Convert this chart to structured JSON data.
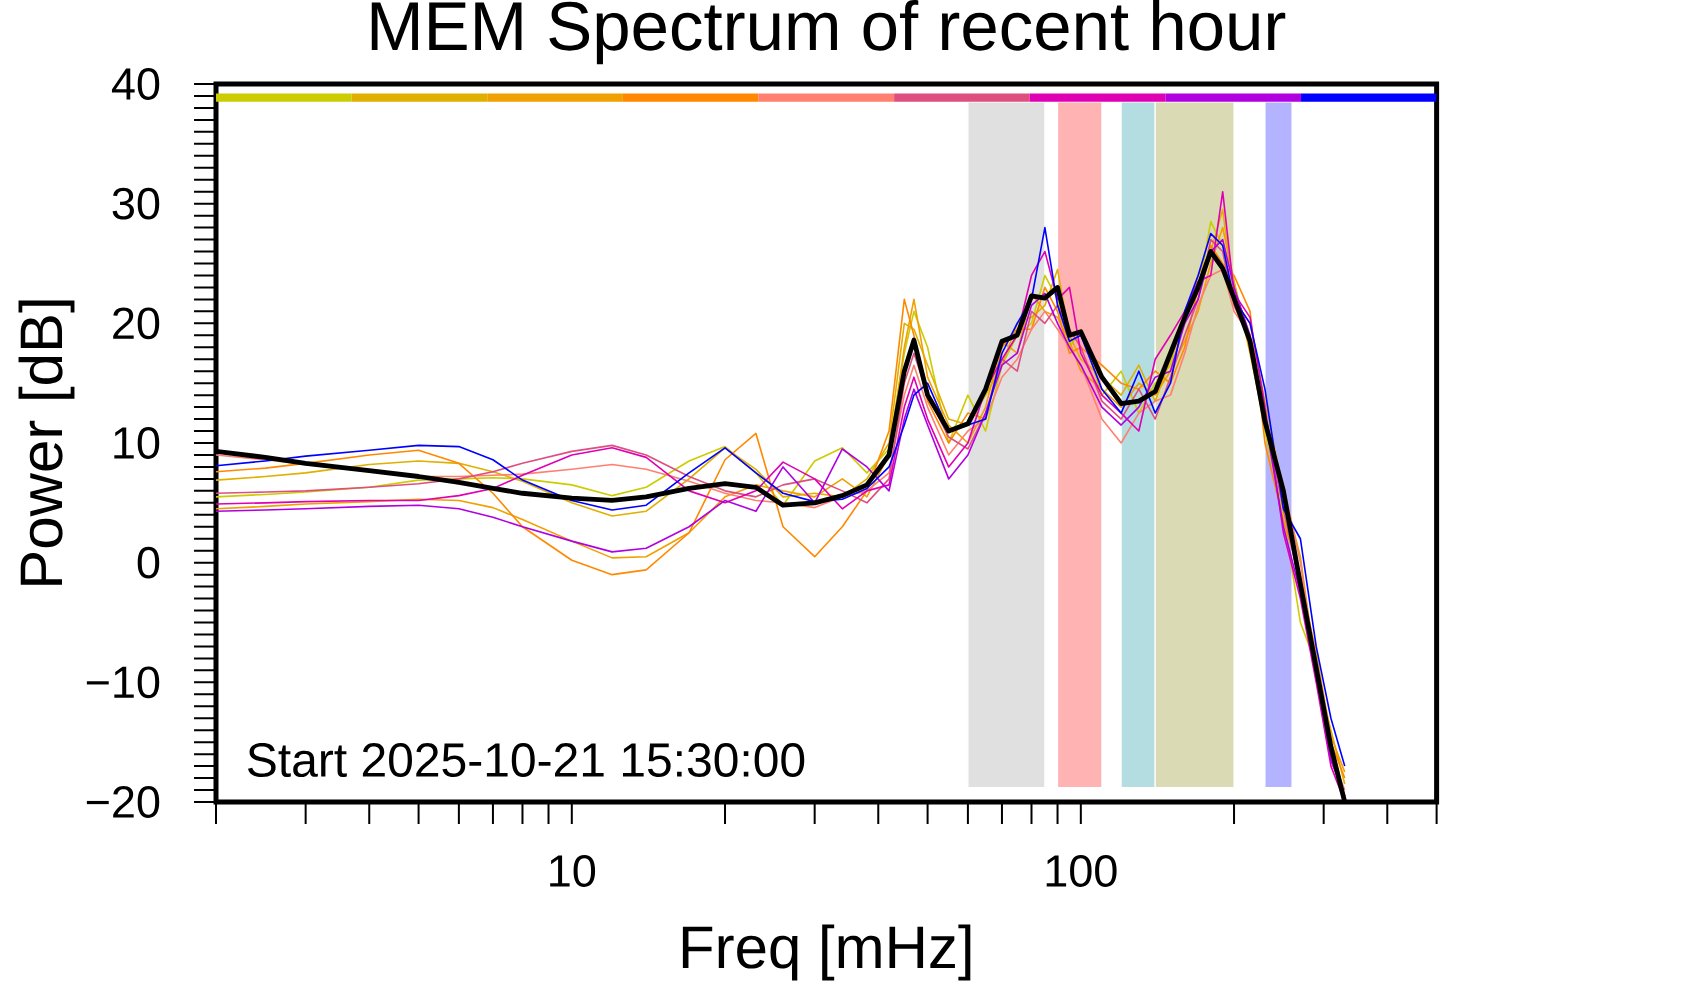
{
  "chart_data": {
    "type": "line",
    "title": "MEM Spectrum of recent hour",
    "xlabel": "Freq [mHz]",
    "ylabel": "Power [dB]",
    "log": "x",
    "xlim": [
      2,
      500
    ],
    "ylim": [
      -20,
      40
    ],
    "xticks": [
      {
        "value": 2,
        "label": null
      },
      {
        "value": 3,
        "label": null
      },
      {
        "value": 4,
        "label": null
      },
      {
        "value": 5,
        "label": null
      },
      {
        "value": 6,
        "label": null
      },
      {
        "value": 7,
        "label": null
      },
      {
        "value": 8,
        "label": null
      },
      {
        "value": 9,
        "label": null
      },
      10,
      {
        "value": 20,
        "label": null
      },
      {
        "value": 30,
        "label": null
      },
      {
        "value": 40,
        "label": null
      },
      {
        "value": 50,
        "label": null
      },
      {
        "value": 60,
        "label": null
      },
      {
        "value": 70,
        "label": null
      },
      {
        "value": 80,
        "label": null
      },
      {
        "value": 90,
        "label": null
      },
      100,
      {
        "value": 200,
        "label": null
      },
      {
        "value": 300,
        "label": null
      },
      {
        "value": 400,
        "label": null
      },
      {
        "value": 500,
        "label": null
      }
    ],
    "yticks": [
      {
        "value": -20,
        "label": "−20"
      },
      {
        "value": -19,
        "label": null
      },
      {
        "value": -18,
        "label": null
      },
      {
        "value": -17,
        "label": null
      },
      {
        "value": -16,
        "label": null
      },
      {
        "value": -15,
        "label": null
      },
      {
        "value": -14,
        "label": null
      },
      {
        "value": -13,
        "label": null
      },
      {
        "value": -12,
        "label": null
      },
      {
        "value": -11,
        "label": null
      },
      {
        "value": -10,
        "label": "−10"
      },
      {
        "value": -9,
        "label": null
      },
      {
        "value": -8,
        "label": null
      },
      {
        "value": -7,
        "label": null
      },
      {
        "value": -6,
        "label": null
      },
      {
        "value": -5,
        "label": null
      },
      {
        "value": -4,
        "label": null
      },
      {
        "value": -3,
        "label": null
      },
      {
        "value": -2,
        "label": null
      },
      {
        "value": -1,
        "label": null
      },
      0,
      {
        "value": 1,
        "label": null
      },
      {
        "value": 2,
        "label": null
      },
      {
        "value": 3,
        "label": null
      },
      {
        "value": 4,
        "label": null
      },
      {
        "value": 5,
        "label": null
      },
      {
        "value": 6,
        "label": null
      },
      {
        "value": 7,
        "label": null
      },
      {
        "value": 8,
        "label": null
      },
      {
        "value": 9,
        "label": null
      },
      10,
      {
        "value": 11,
        "label": null
      },
      {
        "value": 12,
        "label": null
      },
      {
        "value": 13,
        "label": null
      },
      {
        "value": 14,
        "label": null
      },
      {
        "value": 15,
        "label": null
      },
      {
        "value": 16,
        "label": null
      },
      {
        "value": 17,
        "label": null
      },
      {
        "value": 18,
        "label": null
      },
      {
        "value": 19,
        "label": null
      },
      20,
      {
        "value": 21,
        "label": null
      },
      {
        "value": 22,
        "label": null
      },
      {
        "value": 23,
        "label": null
      },
      {
        "value": 24,
        "label": null
      },
      {
        "value": 25,
        "label": null
      },
      {
        "value": 26,
        "label": null
      },
      {
        "value": 27,
        "label": null
      },
      {
        "value": 28,
        "label": null
      },
      {
        "value": 29,
        "label": null
      },
      30,
      {
        "value": 31,
        "label": null
      },
      {
        "value": 32,
        "label": null
      },
      {
        "value": 33,
        "label": null
      },
      {
        "value": 34,
        "label": null
      },
      {
        "value": 35,
        "label": null
      },
      {
        "value": 36,
        "label": null
      },
      {
        "value": 37,
        "label": null
      },
      {
        "value": 38,
        "label": null
      },
      {
        "value": 39,
        "label": null
      },
      40
    ],
    "x": [
      2,
      2.5,
      3,
      4,
      5,
      6,
      7,
      8,
      10,
      12,
      14,
      17,
      20,
      23,
      26,
      30,
      34,
      38,
      42,
      45,
      47,
      50,
      55,
      60,
      65,
      70,
      75,
      80,
      85,
      90,
      95,
      100,
      110,
      120,
      130,
      140,
      150,
      160,
      170,
      180,
      190,
      200,
      215,
      230,
      250,
      270,
      290,
      310,
      330
    ],
    "series": [
      {
        "color": "#cccc00",
        "values": [
          5.5,
          5.7,
          5.9,
          6.3,
          6.9,
          7.0,
          7.1,
          7.0,
          6.5,
          5.6,
          6.3,
          8.5,
          9.7,
          7.5,
          4.8,
          8.5,
          9.6,
          7.5,
          9.5,
          17.5,
          21.0,
          18.0,
          10.0,
          14.0,
          11.0,
          16.5,
          19.0,
          20.0,
          24.0,
          22.0,
          18.0,
          19.5,
          14.0,
          16.0,
          12.5,
          15.0,
          16.5,
          21.0,
          22.5,
          28.5,
          26.5,
          23.5,
          18.0,
          11.0,
          4.0,
          -5.0,
          -8.5,
          -15.0,
          -19.5
        ]
      },
      {
        "color": "#dfb000",
        "values": [
          6.9,
          7.2,
          7.5,
          8.2,
          8.5,
          8.3,
          7.6,
          6.8,
          5.0,
          3.9,
          4.3,
          7.0,
          9.6,
          7.8,
          5.5,
          5.8,
          5.5,
          7.0,
          10.0,
          20.0,
          19.5,
          16.5,
          12.0,
          11.5,
          14.0,
          16.5,
          20.0,
          20.5,
          21.5,
          24.5,
          19.0,
          17.0,
          15.5,
          14.0,
          16.5,
          13.5,
          17.0,
          20.0,
          24.0,
          26.0,
          29.5,
          22.0,
          20.0,
          13.5,
          6.0,
          0.5,
          -9.0,
          -14.0,
          -18.5
        ]
      },
      {
        "color": "#f0a000",
        "values": [
          4.5,
          4.7,
          4.9,
          5.1,
          5.3,
          5.2,
          4.6,
          3.6,
          1.8,
          0.4,
          0.5,
          2.5,
          5.5,
          6.5,
          6.0,
          5.5,
          7.0,
          5.5,
          9.0,
          18.0,
          22.0,
          15.5,
          11.5,
          10.0,
          13.0,
          18.5,
          17.5,
          22.5,
          21.0,
          20.5,
          18.5,
          16.0,
          14.5,
          13.0,
          15.0,
          14.0,
          16.0,
          18.5,
          21.0,
          25.0,
          28.0,
          23.5,
          17.5,
          11.5,
          5.5,
          -1.5,
          -7.5,
          -14.5,
          -17.5
        ]
      },
      {
        "color": "#ff8800",
        "values": [
          7.6,
          7.9,
          8.3,
          9.0,
          9.4,
          8.3,
          5.8,
          3.0,
          0.2,
          -1.0,
          -0.6,
          2.5,
          8.6,
          10.8,
          3.0,
          0.5,
          3.0,
          6.0,
          11.0,
          22.0,
          19.0,
          13.5,
          10.0,
          12.5,
          12.0,
          18.0,
          19.5,
          19.5,
          23.0,
          21.0,
          17.5,
          18.0,
          16.5,
          15.0,
          14.5,
          16.0,
          15.0,
          18.0,
          23.0,
          26.5,
          25.0,
          24.0,
          21.0,
          10.0,
          3.5,
          -1.0,
          -8.0,
          -15.0,
          -18.0
        ]
      },
      {
        "color": "#ff7f70",
        "values": [
          9.0,
          8.6,
          8.2,
          7.6,
          7.2,
          7.2,
          7.3,
          7.4,
          7.8,
          8.2,
          7.8,
          6.8,
          5.8,
          5.2,
          5.0,
          4.6,
          5.5,
          6.0,
          7.5,
          14.0,
          16.5,
          13.0,
          9.0,
          11.0,
          12.0,
          15.5,
          17.0,
          19.5,
          21.0,
          19.5,
          18.0,
          16.5,
          12.0,
          10.0,
          12.5,
          13.5,
          14.0,
          17.5,
          21.5,
          24.0,
          24.5,
          21.0,
          19.0,
          12.0,
          6.5,
          0.0,
          -9.0,
          -16.0,
          -19.0
        ]
      },
      {
        "color": "#dd4f7f",
        "values": [
          5.8,
          5.9,
          6.0,
          6.3,
          6.6,
          7.0,
          7.6,
          8.3,
          9.3,
          9.8,
          9.0,
          7.2,
          6.0,
          5.5,
          6.5,
          7.0,
          6.0,
          5.0,
          7.0,
          15.0,
          17.5,
          14.0,
          10.5,
          9.5,
          12.5,
          17.0,
          16.0,
          21.0,
          20.0,
          21.5,
          19.5,
          18.0,
          13.5,
          12.0,
          14.5,
          12.0,
          15.5,
          19.0,
          22.0,
          27.0,
          26.0,
          21.5,
          18.5,
          12.0,
          4.5,
          -2.0,
          -9.5,
          -16.5,
          -19.5
        ]
      },
      {
        "color": "#e000b4",
        "values": [
          4.9,
          5.0,
          5.1,
          5.2,
          5.2,
          5.6,
          6.2,
          7.3,
          9.0,
          9.6,
          8.8,
          6.0,
          5.0,
          6.0,
          8.4,
          7.0,
          4.5,
          6.0,
          6.5,
          13.0,
          15.5,
          12.0,
          8.0,
          10.0,
          14.5,
          17.0,
          19.0,
          24.0,
          26.0,
          22.0,
          23.0,
          17.5,
          14.0,
          12.5,
          11.0,
          17.0,
          19.0,
          21.0,
          23.5,
          24.0,
          31.0,
          22.5,
          20.5,
          13.0,
          2.5,
          -3.0,
          -10.0,
          -17.0,
          -20.0
        ]
      },
      {
        "color": "#b100e0",
        "values": [
          4.3,
          4.4,
          4.5,
          4.7,
          4.8,
          4.5,
          3.8,
          3.0,
          1.8,
          0.9,
          1.2,
          3.0,
          5.2,
          4.3,
          8.0,
          5.0,
          9.5,
          8.0,
          6.0,
          12.0,
          14.5,
          11.5,
          7.0,
          9.0,
          12.5,
          16.5,
          17.5,
          21.5,
          22.5,
          20.0,
          18.0,
          16.5,
          13.0,
          11.5,
          13.0,
          15.5,
          16.0,
          20.0,
          22.0,
          26.0,
          27.0,
          23.0,
          19.0,
          12.0,
          3.0,
          -2.5,
          -9.5,
          -16.5,
          -19.5
        ]
      },
      {
        "color": "#0000ff",
        "values": [
          8.1,
          8.5,
          8.9,
          9.4,
          9.8,
          9.7,
          8.6,
          6.9,
          5.2,
          4.4,
          4.8,
          7.5,
          9.6,
          7.5,
          5.8,
          5.1,
          5.3,
          6.2,
          8.0,
          11.5,
          14.0,
          15.0,
          11.0,
          11.5,
          12.0,
          17.5,
          20.0,
          22.0,
          28.0,
          21.5,
          18.5,
          19.0,
          14.5,
          12.5,
          16.0,
          12.5,
          15.0,
          21.0,
          24.0,
          27.5,
          26.5,
          22.0,
          20.0,
          14.5,
          4.5,
          2.0,
          -7.0,
          -13.0,
          -17.0
        ]
      },
      {
        "color": "#000000",
        "x": [
          2,
          2.5,
          3,
          4,
          5,
          6,
          7,
          8,
          10,
          12,
          14,
          17,
          20,
          23,
          26,
          30,
          34,
          38,
          42,
          45,
          47,
          50,
          55,
          60,
          65,
          70,
          75,
          80,
          85,
          90,
          95,
          100,
          110,
          120,
          130,
          140,
          150,
          160,
          170,
          180,
          190,
          200,
          215,
          230,
          250,
          270,
          290,
          310,
          330
        ],
        "values": [
          9.3,
          8.8,
          8.3,
          7.7,
          7.2,
          6.7,
          6.2,
          5.8,
          5.4,
          5.2,
          5.5,
          6.2,
          6.6,
          6.3,
          4.8,
          5.0,
          5.6,
          6.5,
          9.0,
          16.0,
          18.6,
          14.0,
          11.0,
          11.6,
          14.5,
          18.5,
          19.0,
          22.3,
          22.1,
          23.0,
          19.0,
          19.3,
          15.5,
          13.3,
          13.5,
          14.3,
          17.5,
          20.5,
          23.0,
          26.0,
          24.6,
          22.1,
          18.5,
          11.8,
          6.0,
          -1.8,
          -8.8,
          -15.4,
          -20.0
        ]
      }
    ],
    "bands": [
      {
        "axis": "x",
        "from": 60,
        "to": 85,
        "color": "#e0e0e0"
      },
      {
        "axis": "x",
        "from": 90,
        "to": 110,
        "color": "#ffb3b3"
      },
      {
        "axis": "x",
        "from": 120,
        "to": 140,
        "color": "#b3dde0"
      },
      {
        "axis": "x",
        "from": 140,
        "to": 200,
        "color": "#dadab4"
      },
      {
        "axis": "x",
        "from": 230,
        "to": 260,
        "color": "#b3b3ff"
      }
    ],
    "annotations": [
      "Start 2025-10-21 15:30:00"
    ]
  }
}
